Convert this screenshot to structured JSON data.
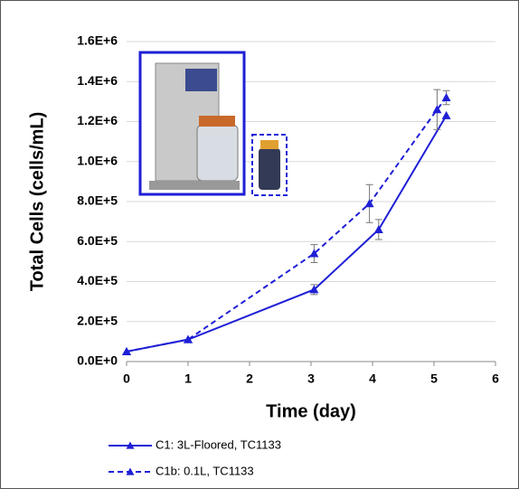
{
  "chart_data": {
    "type": "line",
    "y_label": "Total Cells (cells/mL)",
    "x_label": "Time (day)",
    "xlim": [
      0,
      6
    ],
    "xticks": [
      0,
      1,
      2,
      3,
      4,
      5,
      6
    ],
    "ylim": [
      0,
      1600000
    ],
    "yticks": [
      {
        "value": 0,
        "label": "0.0E+0"
      },
      {
        "value": 200000,
        "label": "2.0E+5"
      },
      {
        "value": 400000,
        "label": "4.0E+5"
      },
      {
        "value": 600000,
        "label": "6.0E+5"
      },
      {
        "value": 800000,
        "label": "8.0E+5"
      },
      {
        "value": 1000000,
        "label": "1.0E+6"
      },
      {
        "value": 1200000,
        "label": "1.2E+6"
      },
      {
        "value": 1400000,
        "label": "1.4E+6"
      },
      {
        "value": 1600000,
        "label": "1.6E+6"
      }
    ],
    "grid": true,
    "series": [
      {
        "name": "C1: 3L-Floored, TC1133",
        "color": "#1f1fd6",
        "dash": false,
        "x": [
          0,
          1,
          3.05,
          4.1,
          5.2
        ],
        "values": [
          50000,
          110000,
          360000,
          660000,
          1230000
        ],
        "errors": [
          null,
          null,
          25000,
          50000,
          null
        ]
      },
      {
        "name": "C1b: 0.1L, TC1133",
        "color": "#1f1fd6",
        "dash": true,
        "x": [
          0,
          1,
          3.05,
          3.95,
          5.05,
          5.2
        ],
        "values": [
          50000,
          110000,
          540000,
          790000,
          1260000,
          1320000
        ],
        "errors": [
          null,
          null,
          45000,
          95000,
          100000,
          35000
        ]
      }
    ]
  }
}
